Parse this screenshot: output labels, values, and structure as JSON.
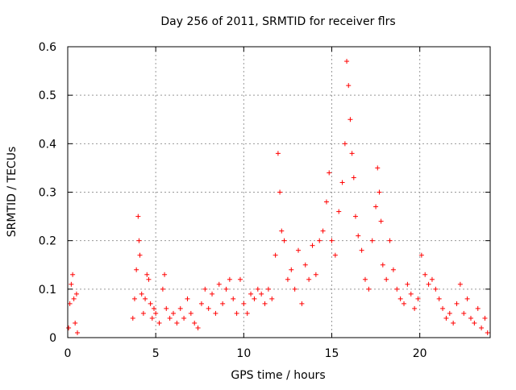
{
  "chart_data": {
    "type": "scatter",
    "title": "Day 256 of 2011, SRMTID for receiver flrs",
    "xlabel": "GPS time / hours",
    "ylabel": "SRMTID / TECUs",
    "xlim": [
      0,
      24
    ],
    "ylim": [
      0,
      0.6
    ],
    "x_ticks": [
      0,
      5,
      10,
      15,
      20
    ],
    "y_ticks": [
      0,
      0.1,
      0.2,
      0.3,
      0.4,
      0.5,
      0.6
    ],
    "x_tick_labels": [
      "0",
      "5",
      "10",
      "15",
      "20"
    ],
    "y_tick_labels": [
      "0",
      "0.1",
      "0.2",
      "0.3",
      "0.4",
      "0.5",
      "0.6"
    ],
    "grid": true,
    "marker": "+",
    "series": [
      {
        "name": "SRMTID",
        "color": "#ff0000",
        "points": [
          [
            0.05,
            0.02
          ],
          [
            0.12,
            0.07
          ],
          [
            0.2,
            0.11
          ],
          [
            0.28,
            0.13
          ],
          [
            0.35,
            0.08
          ],
          [
            0.42,
            0.03
          ],
          [
            0.5,
            0.09
          ],
          [
            0.55,
            0.01
          ],
          [
            3.7,
            0.04
          ],
          [
            3.8,
            0.08
          ],
          [
            3.9,
            0.14
          ],
          [
            4.0,
            0.25
          ],
          [
            4.05,
            0.2
          ],
          [
            4.1,
            0.17
          ],
          [
            4.2,
            0.09
          ],
          [
            4.3,
            0.05
          ],
          [
            4.4,
            0.08
          ],
          [
            4.5,
            0.13
          ],
          [
            4.6,
            0.12
          ],
          [
            4.7,
            0.07
          ],
          [
            4.8,
            0.04
          ],
          [
            4.9,
            0.06
          ],
          [
            5.0,
            0.05
          ],
          [
            5.2,
            0.03
          ],
          [
            5.4,
            0.1
          ],
          [
            5.5,
            0.13
          ],
          [
            5.6,
            0.06
          ],
          [
            5.8,
            0.04
          ],
          [
            6.0,
            0.05
          ],
          [
            6.2,
            0.03
          ],
          [
            6.4,
            0.06
          ],
          [
            6.6,
            0.04
          ],
          [
            6.8,
            0.08
          ],
          [
            7.0,
            0.05
          ],
          [
            7.2,
            0.03
          ],
          [
            7.4,
            0.02
          ],
          [
            7.6,
            0.07
          ],
          [
            7.8,
            0.1
          ],
          [
            8.0,
            0.06
          ],
          [
            8.2,
            0.09
          ],
          [
            8.4,
            0.05
          ],
          [
            8.6,
            0.11
          ],
          [
            8.8,
            0.07
          ],
          [
            9.0,
            0.1
          ],
          [
            9.2,
            0.12
          ],
          [
            9.4,
            0.08
          ],
          [
            9.6,
            0.05
          ],
          [
            9.8,
            0.12
          ],
          [
            10.0,
            0.07
          ],
          [
            10.2,
            0.05
          ],
          [
            10.4,
            0.09
          ],
          [
            10.6,
            0.08
          ],
          [
            10.8,
            0.1
          ],
          [
            11.0,
            0.09
          ],
          [
            11.2,
            0.07
          ],
          [
            11.4,
            0.1
          ],
          [
            11.6,
            0.08
          ],
          [
            11.8,
            0.17
          ],
          [
            11.95,
            0.38
          ],
          [
            12.05,
            0.3
          ],
          [
            12.15,
            0.22
          ],
          [
            12.3,
            0.2
          ],
          [
            12.5,
            0.12
          ],
          [
            12.7,
            0.14
          ],
          [
            12.9,
            0.1
          ],
          [
            13.1,
            0.18
          ],
          [
            13.3,
            0.07
          ],
          [
            13.5,
            0.15
          ],
          [
            13.7,
            0.12
          ],
          [
            13.9,
            0.19
          ],
          [
            14.1,
            0.13
          ],
          [
            14.3,
            0.2
          ],
          [
            14.5,
            0.22
          ],
          [
            14.7,
            0.28
          ],
          [
            14.85,
            0.34
          ],
          [
            15.0,
            0.2
          ],
          [
            15.2,
            0.17
          ],
          [
            15.4,
            0.26
          ],
          [
            15.6,
            0.32
          ],
          [
            15.75,
            0.4
          ],
          [
            15.85,
            0.57
          ],
          [
            15.95,
            0.52
          ],
          [
            16.05,
            0.45
          ],
          [
            16.15,
            0.38
          ],
          [
            16.25,
            0.33
          ],
          [
            16.35,
            0.25
          ],
          [
            16.5,
            0.21
          ],
          [
            16.7,
            0.18
          ],
          [
            16.9,
            0.12
          ],
          [
            17.1,
            0.1
          ],
          [
            17.3,
            0.2
          ],
          [
            17.5,
            0.27
          ],
          [
            17.6,
            0.35
          ],
          [
            17.7,
            0.3
          ],
          [
            17.8,
            0.24
          ],
          [
            17.9,
            0.15
          ],
          [
            18.1,
            0.12
          ],
          [
            18.3,
            0.2
          ],
          [
            18.5,
            0.14
          ],
          [
            18.7,
            0.1
          ],
          [
            18.9,
            0.08
          ],
          [
            19.1,
            0.07
          ],
          [
            19.3,
            0.11
          ],
          [
            19.5,
            0.09
          ],
          [
            19.7,
            0.06
          ],
          [
            19.9,
            0.08
          ],
          [
            20.1,
            0.17
          ],
          [
            20.3,
            0.13
          ],
          [
            20.5,
            0.11
          ],
          [
            20.7,
            0.12
          ],
          [
            20.9,
            0.1
          ],
          [
            21.1,
            0.08
          ],
          [
            21.3,
            0.06
          ],
          [
            21.5,
            0.04
          ],
          [
            21.7,
            0.05
          ],
          [
            21.9,
            0.03
          ],
          [
            22.1,
            0.07
          ],
          [
            22.3,
            0.11
          ],
          [
            22.5,
            0.05
          ],
          [
            22.7,
            0.08
          ],
          [
            22.9,
            0.04
          ],
          [
            23.1,
            0.03
          ],
          [
            23.3,
            0.06
          ],
          [
            23.5,
            0.02
          ],
          [
            23.7,
            0.04
          ],
          [
            23.85,
            0.01
          ]
        ]
      }
    ]
  }
}
